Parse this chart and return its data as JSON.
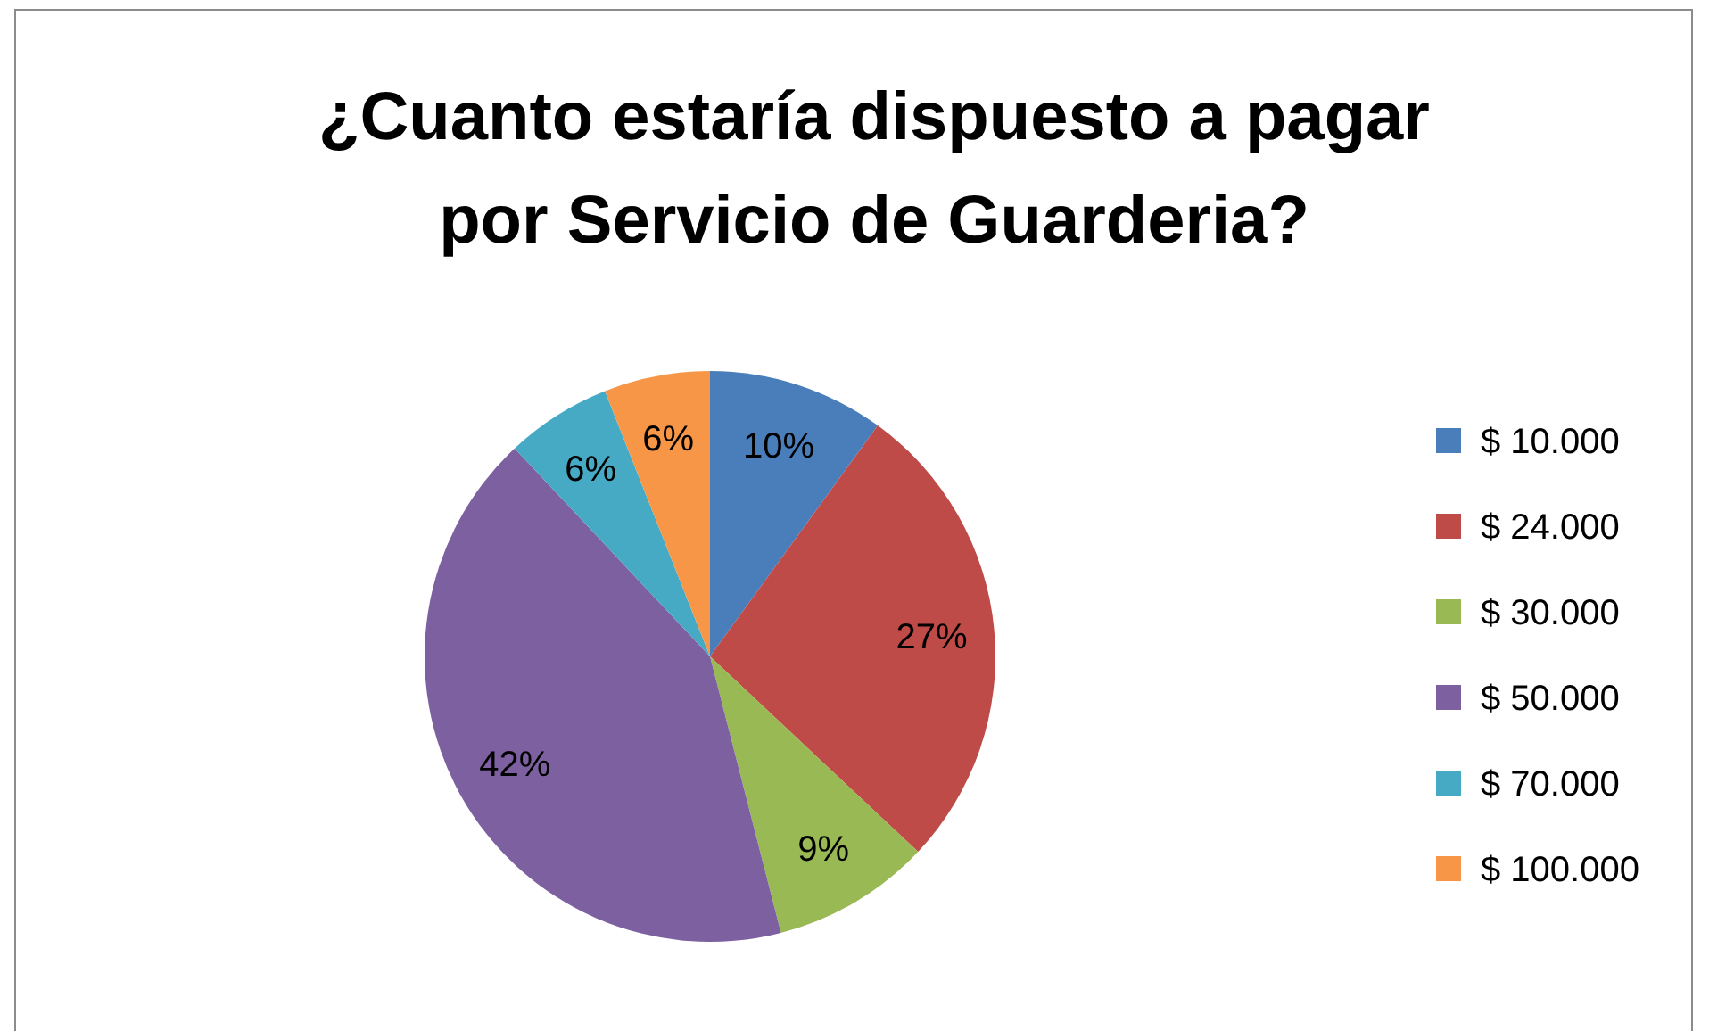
{
  "chart_data": {
    "type": "pie",
    "title": "¿Cuanto estaría dispuesto a pagar\npor Servicio de Guarderia?",
    "categories": [
      "$ 10.000",
      "$ 24.000",
      "$ 30.000",
      "$ 50.000",
      "$ 70.000",
      "$ 100.000"
    ],
    "values": [
      10,
      27,
      9,
      42,
      6,
      6
    ],
    "colors": [
      "#4a7ebb",
      "#be4b48",
      "#98b954",
      "#7d60a0",
      "#46aac5",
      "#f79646"
    ],
    "value_labels": [
      "10%",
      "27%",
      "9%",
      "42%",
      "6%",
      "6%"
    ],
    "legend": "right"
  }
}
